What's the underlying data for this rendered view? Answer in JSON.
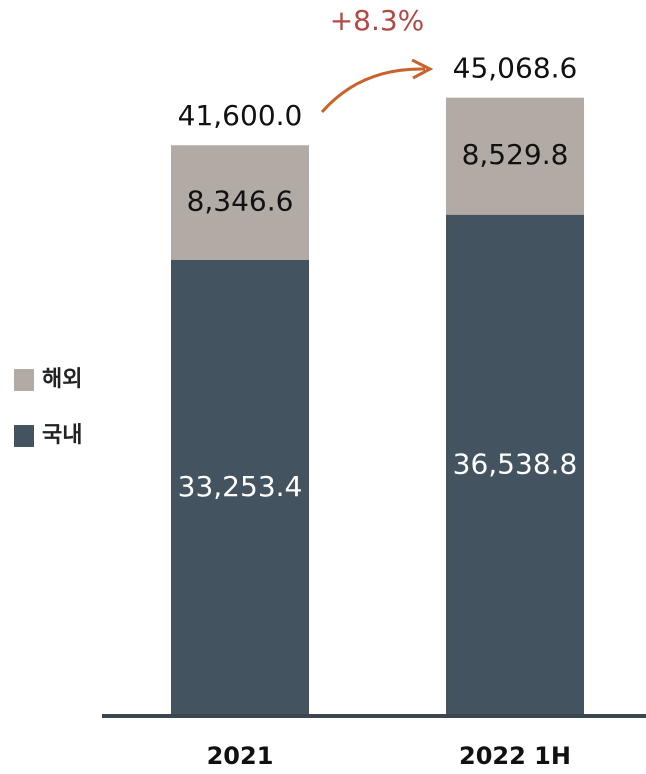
{
  "chart_data": {
    "type": "stacked_bar",
    "categories": [
      "2021",
      "2022 1H"
    ],
    "series": [
      {
        "name": "국내",
        "color": "#43535f",
        "values": [
          33253.4,
          36538.8
        ],
        "value_labels": [
          "33,253.4",
          "36,538.8"
        ],
        "label_color": "#ffffff"
      },
      {
        "name": "해외",
        "color": "#b2aaa4",
        "values": [
          8346.6,
          8529.8
        ],
        "value_labels": [
          "8,346.6",
          "8,529.8"
        ],
        "label_color": "#111111"
      }
    ],
    "totals": [
      41600.0,
      45068.6
    ],
    "total_labels": [
      "41,600.0",
      "45,068.6"
    ],
    "annotation": "+8.3%",
    "ylim": [
      0,
      50000
    ]
  }
}
